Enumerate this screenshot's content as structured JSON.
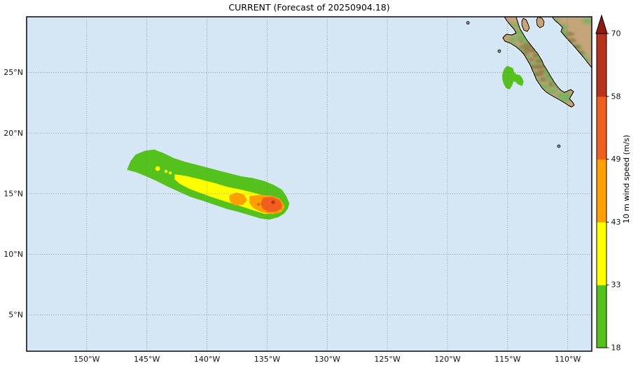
{
  "chart_data": {
    "type": "map-contour",
    "title": "CURRENT (Forecast of 20250904.18)",
    "extent": {
      "lon_min": -155.0,
      "lon_max": -108.0,
      "lat_min": 2.0,
      "lat_max": 29.6
    },
    "x_ticks": [
      {
        "value": -150,
        "label": "150°W"
      },
      {
        "value": -145,
        "label": "145°W"
      },
      {
        "value": -140,
        "label": "140°W"
      },
      {
        "value": -135,
        "label": "135°W"
      },
      {
        "value": -130,
        "label": "130°W"
      },
      {
        "value": -125,
        "label": "125°W"
      },
      {
        "value": -120,
        "label": "120°W"
      },
      {
        "value": -115,
        "label": "115°W"
      },
      {
        "value": -110,
        "label": "110°W"
      }
    ],
    "y_ticks": [
      {
        "value": 5,
        "label": "5°N"
      },
      {
        "value": 10,
        "label": "10°N"
      },
      {
        "value": 15,
        "label": "15°N"
      },
      {
        "value": 20,
        "label": "20°N"
      },
      {
        "value": 25,
        "label": "25°N"
      }
    ],
    "ocean_color": "#d5e7f4",
    "grid_color": "#777777",
    "colorbar": {
      "label": "10 m wind speed (m/s)",
      "tick_labels": [
        "18",
        "33",
        "43",
        "49",
        "58",
        "70"
      ],
      "segments": [
        {
          "range": "18-33",
          "color": "#55c11d"
        },
        {
          "range": "33-43",
          "color": "#ffff00"
        },
        {
          "range": "43-49",
          "color": "#ffa000"
        },
        {
          "range": "49-58",
          "color": "#f15f20"
        },
        {
          "range": "58-70",
          "color": "#b5341a"
        }
      ],
      "arrow_color": "#8c1c0e"
    },
    "land_colors": {
      "base": "#c4a478",
      "green": "#77b45e",
      "brown": "#96744a",
      "outline": "#000000",
      "halo": "#ffffff"
    },
    "land_polygons": [
      {
        "name": "baja-california-peninsula",
        "points": [
          [
            -115.28,
            29.6
          ],
          [
            -115.05,
            29.25
          ],
          [
            -114.76,
            28.91
          ],
          [
            -114.46,
            28.56
          ],
          [
            -114.29,
            28.27
          ],
          [
            -114.64,
            28.1
          ],
          [
            -115.11,
            28.16
          ],
          [
            -115.4,
            27.87
          ],
          [
            -115.22,
            27.58
          ],
          [
            -114.76,
            27.41
          ],
          [
            -114.29,
            27.12
          ],
          [
            -113.88,
            26.77
          ],
          [
            -113.59,
            26.42
          ],
          [
            -113.36,
            26.02
          ],
          [
            -113.12,
            25.62
          ],
          [
            -112.95,
            25.21
          ],
          [
            -112.77,
            24.81
          ],
          [
            -112.6,
            24.4
          ],
          [
            -112.37,
            24.06
          ],
          [
            -112.13,
            23.71
          ],
          [
            -111.84,
            23.42
          ],
          [
            -111.49,
            23.19
          ],
          [
            -111.08,
            22.96
          ],
          [
            -110.67,
            22.73
          ],
          [
            -110.27,
            22.5
          ],
          [
            -109.92,
            22.27
          ],
          [
            -109.68,
            22.15
          ],
          [
            -109.45,
            22.32
          ],
          [
            -109.63,
            22.61
          ],
          [
            -109.86,
            22.84
          ],
          [
            -109.68,
            23.13
          ],
          [
            -109.51,
            23.42
          ],
          [
            -109.74,
            23.6
          ],
          [
            -110.03,
            23.48
          ],
          [
            -110.27,
            23.36
          ],
          [
            -110.56,
            23.54
          ],
          [
            -110.79,
            23.77
          ],
          [
            -110.96,
            24.0
          ],
          [
            -111.14,
            24.23
          ],
          [
            -111.31,
            24.52
          ],
          [
            -111.49,
            24.81
          ],
          [
            -111.66,
            25.1
          ],
          [
            -111.84,
            25.39
          ],
          [
            -112.01,
            25.67
          ],
          [
            -112.13,
            25.96
          ],
          [
            -112.31,
            26.25
          ],
          [
            -112.48,
            26.54
          ],
          [
            -112.71,
            26.83
          ],
          [
            -112.95,
            27.12
          ],
          [
            -113.18,
            27.41
          ],
          [
            -113.41,
            27.7
          ],
          [
            -113.59,
            27.99
          ],
          [
            -113.76,
            28.27
          ],
          [
            -113.94,
            28.56
          ],
          [
            -114.05,
            28.85
          ],
          [
            -114.17,
            29.2
          ],
          [
            -114.29,
            29.6
          ]
        ]
      },
      {
        "name": "mainland-mexico",
        "points": [
          [
            -111.31,
            29.6
          ],
          [
            -111.08,
            29.31
          ],
          [
            -110.73,
            29.02
          ],
          [
            -110.44,
            28.73
          ],
          [
            -110.56,
            28.39
          ],
          [
            -110.27,
            28.04
          ],
          [
            -109.92,
            27.64
          ],
          [
            -109.57,
            27.29
          ],
          [
            -109.28,
            26.94
          ],
          [
            -108.98,
            26.6
          ],
          [
            -108.69,
            26.25
          ],
          [
            -108.46,
            25.96
          ],
          [
            -108.23,
            25.67
          ],
          [
            -108.0,
            25.39
          ],
          [
            -108.0,
            29.6
          ]
        ]
      },
      {
        "name": "isla-angel-de-la-guarda",
        "points": [
          [
            -113.7,
            29.48
          ],
          [
            -113.47,
            29.37
          ],
          [
            -113.3,
            29.02
          ],
          [
            -113.18,
            28.68
          ],
          [
            -113.36,
            28.39
          ],
          [
            -113.65,
            28.5
          ],
          [
            -113.82,
            28.91
          ],
          [
            -113.82,
            29.25
          ]
        ]
      },
      {
        "name": "isla-tiburon",
        "points": [
          [
            -112.48,
            29.6
          ],
          [
            -112.13,
            29.48
          ],
          [
            -111.96,
            29.2
          ],
          [
            -112.01,
            28.85
          ],
          [
            -112.31,
            28.68
          ],
          [
            -112.54,
            28.91
          ],
          [
            -112.6,
            29.31
          ]
        ]
      }
    ],
    "small_islands": [
      {
        "name": "guadalupe",
        "lon": -118.3,
        "lat": 29.1
      },
      {
        "name": "socorro",
        "lon": -110.74,
        "lat": 18.92
      },
      {
        "name": "west-islet",
        "lon": -115.69,
        "lat": 26.77
      }
    ],
    "wind_swath": {
      "main": [
        {
          "level": "18-33",
          "points": [
            [
              -146.6,
              17.0
            ],
            [
              -146.3,
              17.7
            ],
            [
              -145.9,
              18.2
            ],
            [
              -145.15,
              18.5
            ],
            [
              -144.4,
              18.6
            ],
            [
              -143.6,
              18.3
            ],
            [
              -142.8,
              17.9
            ],
            [
              -141.85,
              17.6
            ],
            [
              -140.7,
              17.3
            ],
            [
              -139.55,
              17.0
            ],
            [
              -138.4,
              16.7
            ],
            [
              -137.2,
              16.4
            ],
            [
              -136.2,
              16.25
            ],
            [
              -135.25,
              16.0
            ],
            [
              -134.5,
              15.7
            ],
            [
              -133.8,
              15.3
            ],
            [
              -133.45,
              14.8
            ],
            [
              -133.2,
              14.2
            ],
            [
              -133.3,
              13.8
            ],
            [
              -133.6,
              13.4
            ],
            [
              -134.1,
              13.1
            ],
            [
              -134.8,
              12.9
            ],
            [
              -135.55,
              13.0
            ],
            [
              -136.4,
              13.25
            ],
            [
              -137.4,
              13.55
            ],
            [
              -138.4,
              13.8
            ],
            [
              -139.3,
              14.1
            ],
            [
              -140.3,
              14.45
            ],
            [
              -141.3,
              14.75
            ],
            [
              -142.2,
              15.15
            ],
            [
              -143.2,
              15.6
            ],
            [
              -144.2,
              16.1
            ],
            [
              -145.1,
              16.5
            ],
            [
              -145.85,
              16.8
            ]
          ]
        },
        {
          "level": "33-43",
          "points": [
            [
              -142.65,
              16.55
            ],
            [
              -141.78,
              16.43
            ],
            [
              -140.61,
              16.15
            ],
            [
              -139.45,
              15.86
            ],
            [
              -138.28,
              15.51
            ],
            [
              -137.12,
              15.28
            ],
            [
              -135.95,
              14.99
            ],
            [
              -135.08,
              14.76
            ],
            [
              -134.32,
              14.47
            ],
            [
              -133.8,
              14.18
            ],
            [
              -133.62,
              13.9
            ],
            [
              -133.86,
              13.55
            ],
            [
              -134.5,
              13.38
            ],
            [
              -135.2,
              13.38
            ],
            [
              -135.95,
              13.61
            ],
            [
              -136.83,
              13.9
            ],
            [
              -137.7,
              14.18
            ],
            [
              -138.69,
              14.47
            ],
            [
              -139.74,
              14.82
            ],
            [
              -140.73,
              15.17
            ],
            [
              -141.6,
              15.51
            ],
            [
              -142.24,
              15.86
            ],
            [
              -142.65,
              16.2
            ]
          ]
        },
        {
          "level": "43-49",
          "points": [
            [
              -138.11,
              14.82
            ],
            [
              -137.53,
              15.05
            ],
            [
              -136.95,
              14.88
            ],
            [
              -136.71,
              14.47
            ],
            [
              -137.01,
              14.13
            ],
            [
              -137.65,
              14.07
            ],
            [
              -138.05,
              14.36
            ]
          ]
        },
        {
          "level": "43-49",
          "points": [
            [
              -136.42,
              14.76
            ],
            [
              -135.66,
              14.87
            ],
            [
              -134.79,
              14.82
            ],
            [
              -134.03,
              14.59
            ],
            [
              -133.68,
              14.18
            ],
            [
              -133.68,
              13.72
            ],
            [
              -134.09,
              13.43
            ],
            [
              -134.79,
              13.38
            ],
            [
              -135.55,
              13.55
            ],
            [
              -136.13,
              13.84
            ],
            [
              -136.42,
              14.24
            ]
          ]
        },
        {
          "level": "49-58",
          "points": [
            [
              -135.31,
              14.64
            ],
            [
              -134.62,
              14.7
            ],
            [
              -134.03,
              14.47
            ],
            [
              -133.8,
              14.12
            ],
            [
              -133.86,
              13.78
            ],
            [
              -134.27,
              13.55
            ],
            [
              -134.91,
              13.55
            ],
            [
              -135.31,
              13.78
            ],
            [
              -135.49,
              14.18
            ]
          ]
        }
      ],
      "spots": [
        {
          "level": "33-43",
          "lon": -144.1,
          "lat": 17.07,
          "r": 0.2
        },
        {
          "level": "33-43",
          "lon": -143.41,
          "lat": 16.84,
          "r": 0.13
        },
        {
          "level": "33-43",
          "lon": -143.06,
          "lat": 16.72,
          "r": 0.12
        },
        {
          "level": "49-58",
          "lon": -135.72,
          "lat": 14.13,
          "r": 0.12
        },
        {
          "level": "58-70",
          "lon": -134.5,
          "lat": 14.3,
          "r": 0.15
        }
      ],
      "secondary": {
        "level": "18-33",
        "points": [
          [
            -115.0,
            25.5
          ],
          [
            -114.58,
            25.33
          ],
          [
            -114.52,
            25.04
          ],
          [
            -114.29,
            24.81
          ],
          [
            -114.0,
            24.75
          ],
          [
            -113.82,
            24.52
          ],
          [
            -113.71,
            24.23
          ],
          [
            -113.82,
            23.94
          ],
          [
            -114.11,
            24.06
          ],
          [
            -114.29,
            24.23
          ],
          [
            -114.52,
            24.35
          ],
          [
            -114.58,
            24.17
          ],
          [
            -114.7,
            23.88
          ],
          [
            -114.87,
            23.65
          ],
          [
            -115.11,
            23.77
          ],
          [
            -115.28,
            24.06
          ],
          [
            -115.4,
            24.46
          ],
          [
            -115.4,
            24.81
          ],
          [
            -115.28,
            25.21
          ],
          [
            -115.11,
            25.44
          ]
        ]
      }
    }
  }
}
